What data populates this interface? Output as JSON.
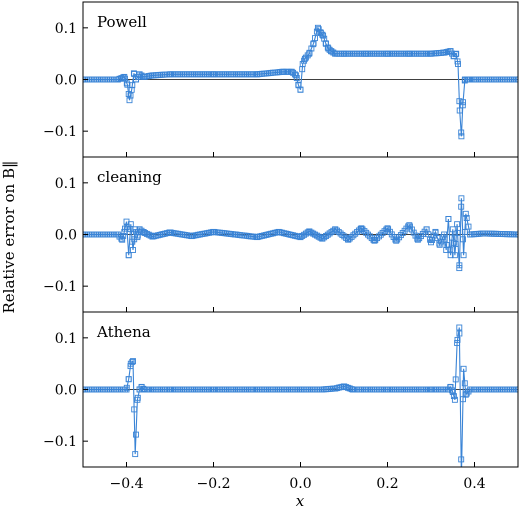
{
  "chart_data": {
    "type": "line",
    "ylabel": "Relative error on B‖",
    "xlabel": "x",
    "xlim": [
      -0.5,
      0.5
    ],
    "ylim": [
      -0.15,
      0.15
    ],
    "x_ticks": [
      -0.4,
      -0.2,
      0.0,
      0.2,
      0.4
    ],
    "x_tick_labels": [
      "−0.4",
      "−0.2",
      "0.0",
      "0.2",
      "0.4"
    ],
    "y_ticks": [
      0.1,
      0.0,
      -0.1
    ],
    "y_tick_labels": [
      "0.1",
      "0.0",
      "−0.1"
    ],
    "grid": false,
    "series_color": "#3a84d6",
    "marker": "square",
    "panels": [
      {
        "title": "Powell",
        "x": [
          -0.5,
          -0.42,
          -0.405,
          -0.398,
          -0.393,
          -0.388,
          -0.383,
          -0.378,
          -0.37,
          -0.36,
          -0.34,
          -0.3,
          -0.2,
          -0.1,
          -0.04,
          -0.02,
          -0.01,
          -0.005,
          0.0,
          0.005,
          0.01,
          0.02,
          0.03,
          0.04,
          0.047,
          0.052,
          0.058,
          0.064,
          0.07,
          0.08,
          0.1,
          0.15,
          0.2,
          0.25,
          0.3,
          0.33,
          0.345,
          0.352,
          0.358,
          0.362,
          0.366,
          0.37,
          0.373,
          0.378,
          0.385,
          0.4,
          0.5
        ],
        "y": [
          0.0,
          0.0,
          0.005,
          -0.01,
          -0.04,
          -0.02,
          0.012,
          0.0,
          0.01,
          0.005,
          0.008,
          0.01,
          0.01,
          0.01,
          0.015,
          0.015,
          0.008,
          -0.01,
          -0.02,
          0.03,
          0.04,
          0.05,
          0.07,
          0.1,
          0.09,
          0.085,
          0.07,
          0.06,
          0.055,
          0.05,
          0.05,
          0.05,
          0.05,
          0.05,
          0.05,
          0.052,
          0.055,
          0.045,
          0.05,
          0.03,
          -0.06,
          -0.11,
          -0.05,
          0.0,
          0.0,
          0.0,
          0.0
        ]
      },
      {
        "title": "cleaning",
        "x": [
          -0.5,
          -0.42,
          -0.41,
          -0.405,
          -0.4,
          -0.395,
          -0.39,
          -0.385,
          -0.38,
          -0.375,
          -0.37,
          -0.36,
          -0.34,
          -0.3,
          -0.25,
          -0.2,
          -0.15,
          -0.1,
          -0.05,
          0.0,
          0.02,
          0.05,
          0.08,
          0.11,
          0.14,
          0.17,
          0.2,
          0.22,
          0.25,
          0.27,
          0.29,
          0.3,
          0.31,
          0.32,
          0.33,
          0.335,
          0.34,
          0.345,
          0.35,
          0.355,
          0.36,
          0.365,
          0.37,
          0.375,
          0.38,
          0.39,
          0.42,
          0.5
        ],
        "y": [
          0.0,
          0.0,
          -0.01,
          0.005,
          0.025,
          -0.04,
          0.02,
          -0.03,
          0.01,
          -0.005,
          0.01,
          0.004,
          -0.004,
          0.004,
          -0.003,
          0.005,
          0.0,
          -0.005,
          0.005,
          -0.005,
          0.006,
          -0.008,
          0.01,
          -0.01,
          0.012,
          -0.012,
          0.012,
          -0.012,
          0.018,
          -0.01,
          0.01,
          -0.015,
          0.005,
          -0.02,
          0.0,
          -0.03,
          0.03,
          -0.04,
          0.01,
          -0.04,
          0.02,
          -0.065,
          0.07,
          -0.04,
          0.04,
          0.0,
          0.002,
          0.0
        ]
      },
      {
        "title": "Athena",
        "x": [
          -0.5,
          -0.4,
          -0.395,
          -0.39,
          -0.385,
          -0.38,
          -0.375,
          -0.37,
          -0.365,
          -0.36,
          -0.35,
          -0.3,
          -0.2,
          -0.1,
          0.0,
          0.05,
          0.08,
          0.1,
          0.12,
          0.15,
          0.2,
          0.3,
          0.34,
          0.345,
          0.35,
          0.355,
          0.36,
          0.365,
          0.37,
          0.375,
          0.38,
          0.39,
          0.5
        ],
        "y": [
          0.0,
          0.0,
          0.02,
          0.05,
          0.055,
          -0.125,
          -0.02,
          0.0,
          0.005,
          0.0,
          0.0,
          0.0,
          0.0,
          0.0,
          0.0,
          0.0,
          0.002,
          0.006,
          0.0,
          0.0,
          0.0,
          0.0,
          0.0,
          0.005,
          -0.005,
          -0.02,
          0.09,
          0.12,
          -0.17,
          0.04,
          -0.01,
          0.0,
          0.0
        ]
      }
    ]
  }
}
